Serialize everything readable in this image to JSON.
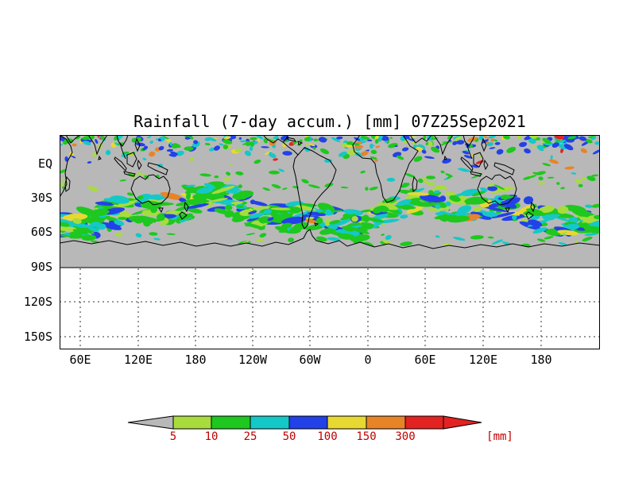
{
  "title": "Rainfall (7-day accum.) [mm] 07Z25Sep2021",
  "axes": {
    "y_ticks": [
      "EQ",
      "30S",
      "60S",
      "90S",
      "120S",
      "150S"
    ],
    "x_ticks": [
      "60E",
      "120E",
      "180",
      "120W",
      "60W",
      "0",
      "60E",
      "120E",
      "180"
    ]
  },
  "colorbar": {
    "labels": [
      "5",
      "10",
      "25",
      "50",
      "100",
      "150",
      "300"
    ],
    "unit": "[mm]",
    "label_color": "#c00000"
  },
  "chart_data": {
    "type": "heatmap",
    "title": "Rainfall (7-day accum.) [mm] 07Z25Sep2021",
    "variable": "Rainfall, 7-day accumulation",
    "unit": "mm",
    "valid_time": "07Z25Sep2021",
    "levels_mm": [
      5,
      10,
      25,
      50,
      100,
      150,
      300
    ],
    "level_colors": [
      "#b8b8b8",
      "#a8dc3c",
      "#1ec81e",
      "#14c8c8",
      "#2341e8",
      "#e8d832",
      "#e88428",
      "#e32222"
    ],
    "background_color": "#b8b8b8",
    "y_axis": {
      "ticks": [
        "EQ",
        "30S",
        "60S",
        "90S",
        "120S",
        "150S"
      ],
      "shaded_range": "EQ to 90S"
    },
    "x_axis": {
      "ticks": [
        "60E",
        "120E",
        "180",
        "120W",
        "60W",
        "0",
        "60E",
        "120E",
        "180"
      ]
    },
    "grid": "dashed",
    "legend_position": "bottom horizontal arrow colorbar"
  }
}
